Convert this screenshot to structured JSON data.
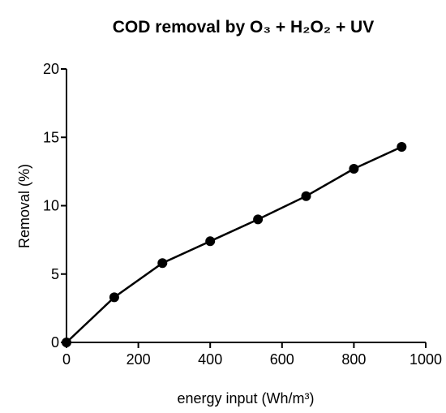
{
  "chart_data": {
    "type": "line",
    "title": "COD removal by O₃ + H₂O₂ + UV",
    "x_label": "energy input (Wh/m³)",
    "y_label": "Removal (%)",
    "x": [
      0,
      133,
      267,
      400,
      533,
      667,
      800,
      933
    ],
    "series": [
      {
        "name": "COD removal",
        "color": "#000000",
        "values": [
          0,
          3.3,
          5.8,
          7.4,
          9.0,
          10.7,
          12.7,
          14.3
        ]
      }
    ],
    "xlim": [
      0,
      1000
    ],
    "xticks": [
      0,
      200,
      400,
      600,
      800,
      1000
    ],
    "ylim": [
      0,
      20
    ],
    "yticks": [
      0,
      5,
      10,
      15,
      20
    ],
    "grid": false
  }
}
